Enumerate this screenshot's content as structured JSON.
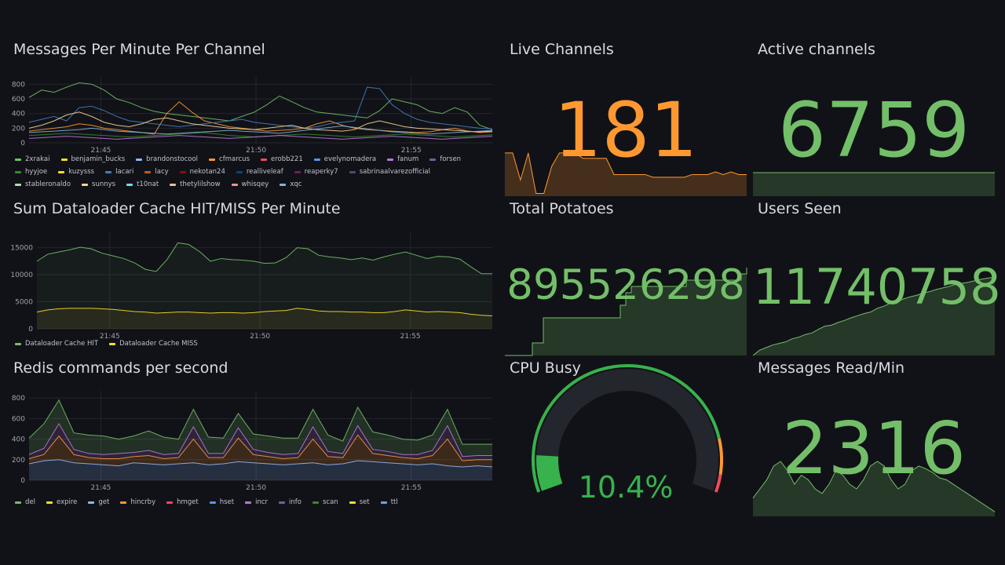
{
  "panels": {
    "messages_per_minute": {
      "title": "Messages Per Minute Per Channel",
      "legend": [
        {
          "name": "2xrakai",
          "color": "#73bf69"
        },
        {
          "name": "benjamin_bucks",
          "color": "#fade2a"
        },
        {
          "name": "brandonstocool",
          "color": "#8ab8ff"
        },
        {
          "name": "cfmarcus",
          "color": "#ff9830"
        },
        {
          "name": "erobb221",
          "color": "#f2495c"
        },
        {
          "name": "evelynomadera",
          "color": "#5794f2"
        },
        {
          "name": "fanum",
          "color": "#b877d9"
        },
        {
          "name": "forsen",
          "color": "#705da0"
        },
        {
          "name": "hyyjoe",
          "color": "#37872d"
        },
        {
          "name": "kuzysss",
          "color": "#fade2a"
        },
        {
          "name": "lacari",
          "color": "#447ebc"
        },
        {
          "name": "lacy",
          "color": "#c15c17"
        },
        {
          "name": "nekotan24",
          "color": "#890f02"
        },
        {
          "name": "realliveleaf",
          "color": "#0a437c"
        },
        {
          "name": "reaperky7",
          "color": "#6d1f62"
        },
        {
          "name": "sabrinaalvarezofficial",
          "color": "#584477"
        },
        {
          "name": "stableronaldo",
          "color": "#b7dbab"
        },
        {
          "name": "sunnys",
          "color": "#f4d598"
        },
        {
          "name": "t10nat",
          "color": "#70dbed"
        },
        {
          "name": "thetylilshow",
          "color": "#f9ba8f"
        },
        {
          "name": "whisqey",
          "color": "#f29191"
        },
        {
          "name": "xqc",
          "color": "#82b5d8"
        }
      ],
      "chart_data": {
        "type": "line",
        "y_ticks": [
          "800",
          "600",
          "400",
          "200",
          "0"
        ],
        "x_ticks": [
          "21:45",
          "21:50",
          "21:55"
        ],
        "ylim": [
          0,
          900
        ],
        "series": [
          {
            "name": "2xrakai",
            "values": [
              620,
              720,
              690,
              760,
              820,
              800,
              720,
              600,
              550,
              480,
              430,
              400,
              380,
              360,
              340,
              320,
              300,
              360,
              420,
              520,
              640,
              560,
              480,
              420,
              400,
              380,
              360,
              340,
              440,
              600,
              560,
              520,
              430,
              400,
              480,
              420,
              240,
              180
            ]
          },
          {
            "name": "cfmarcus",
            "values": [
              160,
              180,
              200,
              220,
              260,
              240,
              200,
              180,
              160,
              140,
              120,
              400,
              560,
              420,
              300,
              260,
              220,
              200,
              180,
              160,
              170,
              180,
              200,
              260,
              300,
              240,
              200,
              180,
              170,
              160,
              150,
              140,
              150,
              180,
              200,
              160,
              140,
              150
            ]
          },
          {
            "name": "lacari",
            "values": [
              280,
              320,
              360,
              300,
              480,
              500,
              440,
              360,
              300,
              280,
              260,
              240,
              220,
              240,
              260,
              280,
              300,
              320,
              280,
              260,
              240,
              220,
              200,
              220,
              260,
              280,
              300,
              760,
              740,
              520,
              400,
              320,
              280,
              260,
              240,
              220,
              200,
              190
            ]
          },
          {
            "name": "sunnys",
            "values": [
              200,
              240,
              300,
              380,
              420,
              360,
              280,
              240,
              220,
              260,
              320,
              340,
              300,
              260,
              240,
              220,
              200,
              190,
              180,
              200,
              220,
              240,
              200,
              180,
              170,
              160,
              180,
              260,
              300,
              260,
              220,
              200,
              190,
              180,
              170,
              160,
              150,
              160
            ]
          },
          {
            "name": "xqc",
            "values": [
              140,
              150,
              160,
              170,
              180,
              200,
              180,
              160,
              150,
              140,
              130,
              120,
              130,
              140,
              150,
              160,
              170,
              160,
              150,
              140,
              130,
              150,
              170,
              190,
              210,
              230,
              210,
              190,
              170,
              150,
              140,
              130,
              120,
              130,
              140,
              150,
              160,
              170
            ]
          },
          {
            "name": "hyyjoe",
            "values": [
              100,
              110,
              120,
              130,
              120,
              110,
              100,
              90,
              80,
              90,
              100,
              110,
              120,
              130,
              140,
              120,
              100,
              90,
              80,
              90,
              100,
              110,
              120,
              110,
              100,
              90,
              80,
              90,
              100,
              110,
              120,
              110,
              100,
              90,
              80,
              90,
              100,
              110
            ]
          },
          {
            "name": "fanum",
            "values": [
              60,
              70,
              80,
              90,
              80,
              70,
              60,
              50,
              60,
              70,
              80,
              90,
              100,
              90,
              80,
              70,
              60,
              70,
              80,
              90,
              100,
              90,
              80,
              70,
              60,
              50,
              60,
              70,
              80,
              90,
              80,
              70,
              60,
              50,
              60,
              70,
              80,
              90
            ]
          }
        ]
      }
    },
    "dataloader_cache": {
      "title": "Sum Dataloader Cache HIT/MISS Per Minute",
      "legend": [
        {
          "name": "Dataloader Cache HIT",
          "color": "#73bf69"
        },
        {
          "name": "Dataloader Cache MISS",
          "color": "#fade2a"
        }
      ],
      "chart_data": {
        "type": "area",
        "y_ticks": [
          "15000",
          "10000",
          "5000",
          "0"
        ],
        "x_ticks": [
          "21:45",
          "21:50",
          "21:55"
        ],
        "ylim": [
          0,
          18000
        ],
        "series": [
          {
            "name": "Dataloader Cache HIT",
            "values": [
              12500,
              13800,
              14200,
              14600,
              15100,
              14800,
              14000,
              13500,
              13000,
              12200,
              11000,
              10600,
              12800,
              15900,
              15600,
              14300,
              12500,
              13000,
              12800,
              12700,
              12500,
              12100,
              12200,
              13200,
              15000,
              14800,
              13600,
              13300,
              13100,
              12800,
              13100,
              12700,
              13300,
              13800,
              14200,
              13600,
              13000,
              13400,
              13300,
              12900,
              11500,
              10200,
              10200
            ]
          },
          {
            "name": "Dataloader Cache MISS",
            "values": [
              3100,
              3500,
              3700,
              3800,
              3800,
              3800,
              3700,
              3600,
              3400,
              3200,
              3100,
              2900,
              3000,
              3100,
              3100,
              3000,
              2900,
              3000,
              3000,
              2900,
              3000,
              3200,
              3300,
              3400,
              3800,
              3600,
              3300,
              3200,
              3200,
              3100,
              3100,
              3000,
              3000,
              3200,
              3500,
              3300,
              3100,
              3200,
              3100,
              3000,
              2700,
              2500,
              2400
            ]
          }
        ]
      }
    },
    "redis_commands": {
      "title": "Redis commands per second",
      "legend": [
        {
          "name": "del",
          "color": "#73bf69"
        },
        {
          "name": "expire",
          "color": "#fade2a"
        },
        {
          "name": "get",
          "color": "#8ab8ff"
        },
        {
          "name": "hincrby",
          "color": "#ff9830"
        },
        {
          "name": "hmget",
          "color": "#f2495c"
        },
        {
          "name": "hset",
          "color": "#5794f2"
        },
        {
          "name": "incr",
          "color": "#b877d9"
        },
        {
          "name": "info",
          "color": "#705da0"
        },
        {
          "name": "scan",
          "color": "#37872d"
        },
        {
          "name": "set",
          "color": "#fade2a"
        },
        {
          "name": "ttl",
          "color": "#6e9fff"
        }
      ],
      "chart_data": {
        "type": "area",
        "stacked": true,
        "y_ticks": [
          "800",
          "600",
          "400",
          "200",
          "0"
        ],
        "x_ticks": [
          "21:45",
          "21:50",
          "21:55"
        ],
        "ylim": [
          0,
          870
        ],
        "series": [
          {
            "name": "get",
            "values": [
              160,
              190,
              200,
              170,
              160,
              150,
              140,
              170,
              160,
              150,
              160,
              170,
              150,
              160,
              180,
              170,
              160,
              150,
              160,
              170,
              150,
              160,
              190,
              180,
              170,
              160,
              150,
              160,
              140,
              130,
              140,
              130
            ]
          },
          {
            "name": "hincrby",
            "values": [
              50,
              60,
              230,
              80,
              60,
              60,
              70,
              60,
              80,
              60,
              60,
              230,
              70,
              60,
              230,
              80,
              70,
              60,
              60,
              230,
              80,
              60,
              250,
              80,
              70,
              60,
              60,
              80,
              260,
              60,
              60,
              70
            ]
          },
          {
            "name": "incr",
            "values": [
              40,
              60,
              120,
              50,
              40,
              40,
              50,
              40,
              50,
              40,
              40,
              120,
              40,
              40,
              100,
              50,
              40,
              40,
              40,
              120,
              50,
              40,
              90,
              40,
              40,
              30,
              40,
              50,
              130,
              40,
              40,
              40
            ]
          },
          {
            "name": "del",
            "values": [
              160,
              240,
              230,
              160,
              180,
              180,
              140,
              160,
              190,
              170,
              140,
              170,
              160,
              150,
              140,
              150,
              160,
              160,
              150,
              170,
              160,
              120,
              180,
              170,
              160,
              150,
              140,
              150,
              160,
              120,
              110,
              110
            ]
          }
        ]
      }
    },
    "live_channels": {
      "title": "Live Channels",
      "value": "181",
      "color": "#ff9830",
      "spark": [
        190,
        190,
        180,
        190,
        175,
        175,
        185,
        190,
        190,
        190,
        188,
        188,
        188,
        188,
        182,
        182,
        182,
        182,
        182,
        181,
        181,
        181,
        181,
        181,
        182,
        182,
        182,
        183,
        182,
        183,
        182,
        182
      ]
    },
    "active_channels": {
      "title": "Active channels",
      "value": "6759",
      "color": "#73bf69",
      "spark": [
        6759,
        6759,
        6759,
        6759,
        6759,
        6759,
        6759,
        6759,
        6759,
        6759
      ]
    },
    "total_potatoes": {
      "title": "Total Potatoes",
      "value": "895526298",
      "color": "#73bf69",
      "spark": [
        0,
        0,
        0,
        0,
        0,
        2,
        2,
        6,
        6,
        6,
        6,
        6,
        6,
        6,
        6,
        6,
        6,
        6,
        6,
        6,
        6,
        8,
        10,
        11,
        11,
        11,
        11,
        11,
        11,
        11,
        11,
        11,
        11,
        12,
        12,
        12,
        12,
        12,
        12,
        12,
        12,
        12,
        12,
        13,
        14
      ]
    },
    "users_seen": {
      "title": "Users Seen",
      "value": "11740758",
      "color": "#73bf69",
      "spark": [
        0,
        1,
        1.5,
        2,
        2.3,
        2.6,
        3.2,
        3.5,
        4,
        4.3,
        5,
        5.6,
        5.8,
        6.3,
        6.7,
        7.2,
        7.6,
        8,
        8.3,
        9,
        9.4,
        10,
        10.3,
        10.8,
        11.2,
        11.5,
        11.9,
        12.2,
        12.6,
        12.9,
        13.2,
        13.6,
        13.8,
        14,
        14.3,
        14.6,
        14.8,
        15
      ]
    },
    "cpu_busy": {
      "title": "CPU Busy",
      "value": "10.4%",
      "percent": 10.4,
      "color": "#37b24d"
    },
    "messages_read": {
      "title": "Messages Read/Min",
      "value": "2316",
      "color": "#73bf69",
      "spark": [
        20,
        30,
        40,
        55,
        60,
        50,
        35,
        45,
        40,
        30,
        25,
        35,
        50,
        45,
        35,
        30,
        40,
        55,
        60,
        55,
        40,
        30,
        35,
        50,
        55,
        52,
        48,
        42,
        40,
        35,
        30,
        25,
        20,
        15,
        10,
        5
      ]
    }
  }
}
